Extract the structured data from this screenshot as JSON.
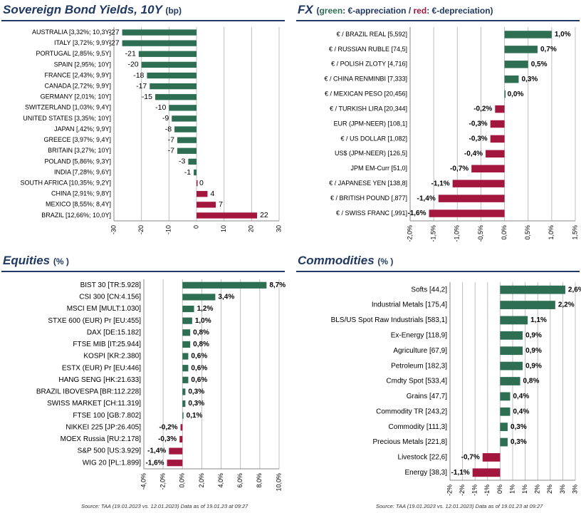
{
  "colors": {
    "green": "#2E6E53",
    "red": "#A3163D",
    "title": "#1F3864",
    "grid": "#BFBFBF"
  },
  "panels": {
    "bonds": {
      "title": "Sovereign Bond Yields, 10Y",
      "unit": "(bp)"
    },
    "fx": {
      "title": "FX",
      "sub_open": "(",
      "sub_green": "green",
      "sub_mid": ": €-appreciation / ",
      "sub_red": "red",
      "sub_close": ": €-depreciation)"
    },
    "equities": {
      "title": "Equities",
      "unit": "(% )"
    },
    "commodities": {
      "title": "Commodities",
      "unit": "(% )"
    }
  },
  "sources": {
    "equities": "Source: TAA (19.01.2023 vs. 12.01.2023) Data as of 19.01.23 at 09:27",
    "commodities": "Source: TAA (19.01.2023 vs. 12.01.2023) Data as of 19.01.23 at 09:27"
  },
  "chart_data": [
    {
      "id": "bonds",
      "type": "bar",
      "orientation": "horizontal",
      "categories": [
        "AUSTRALIA [3,32%; 10,3Y]",
        "ITALY [3,72%; 9,9Y]",
        "PORTUGAL [2,85%; 9,5Y]",
        "SPAIN [2,95%; 10Y]",
        "FRANCE [2,43%; 9,9Y]",
        "CANADA [2,72%; 9,9Y]",
        "GERMANY [2,01%; 10Y]",
        "SWITZERLAND [1,03%; 9,4Y]",
        "UNITED STATES [3,35%; 10Y]",
        "JAPAN [,42%; 9,9Y]",
        "GREECE [3,97%; 9,4Y]",
        "BRITAIN [3,27%; 10Y]",
        "POLAND [5,86%; 9,3Y]",
        "INDIA [7,28%; 9,6Y]",
        "SOUTH AFRICA [10,35%; 9,2Y]",
        "CHINA [2,91%; 9,8Y]",
        "MEXICO [8,55%; 8,4Y]",
        "BRAZIL [12,66%; 10,0Y]"
      ],
      "values": [
        -27,
        -27,
        -21,
        -20,
        -18,
        -17,
        -15,
        -10,
        -9,
        -8,
        -7,
        -7,
        -3,
        -1,
        0,
        4,
        7,
        22
      ],
      "labels": [
        "-27",
        "-27",
        "-21",
        "-20",
        "-18",
        "-17",
        "-15",
        "-10",
        "-9",
        "-8",
        "-7",
        "-7",
        "-3",
        "-1",
        "0",
        "4",
        "7",
        "22"
      ],
      "xlim": [
        -30,
        30
      ],
      "ticks": [
        -30,
        -20,
        -10,
        0,
        10,
        20,
        30
      ],
      "tick_labels": [
        "-30",
        "-20",
        "-10",
        "0",
        "10",
        "20",
        "30"
      ],
      "color_rule": "negative-green-positive-red"
    },
    {
      "id": "fx",
      "type": "bar",
      "orientation": "horizontal",
      "categories": [
        "€ / BRAZIL REAL [5,592]",
        "€ / RUSSIAN RUBLE [74,5]",
        "€ / POLISH ZLOTY [4,716]",
        "€ / CHINA RENMINBI [7,333]",
        "€ / MEXICAN  PESO [20,456]",
        "€ / TURKISH LIRA [20,344]",
        "EUR (JPM-NEER) [108,1]",
        "€ / US DOLLAR [1,082]",
        "US$ (JPM-NEER) [126,5]",
        "JPM EM-Curr [51,0]",
        "€ / JAPANESE YEN [138,8]",
        "€ / BRITISH POUND [,877]",
        "€ / SWISS FRANC [,991]"
      ],
      "values": [
        1.0,
        0.7,
        0.5,
        0.3,
        0.0,
        -0.2,
        -0.3,
        -0.3,
        -0.4,
        -0.7,
        -1.1,
        -1.4,
        -1.6
      ],
      "labels": [
        "1,0%",
        "0,7%",
        "0,5%",
        "0,3%",
        "0,0%",
        "-0,2%",
        "-0,3%",
        "-0,3%",
        "-0,4%",
        "-0,7%",
        "-1,1%",
        "-1,4%",
        "-1,6%"
      ],
      "xlim": [
        -2.0,
        1.5
      ],
      "ticks": [
        -2.0,
        -1.5,
        -1.0,
        -0.5,
        0,
        0.5,
        1.0,
        1.5
      ],
      "tick_labels": [
        "-2,0%",
        "-1,5%",
        "-1,0%",
        "-0,5%",
        "0,0%",
        "0,5%",
        "1,0%",
        "1,5%"
      ],
      "color_rule": "positive-green-negative-red"
    },
    {
      "id": "equities",
      "type": "bar",
      "orientation": "horizontal",
      "categories": [
        "BIST 30  [TR:5.928]",
        "CSI 300  [CN:4.156]",
        "MSCI EM  [MULT:1.030]",
        "STXE 600 (EUR) Pr [EU:455]",
        "DAX  [DE:15.182]",
        "FTSE MIB [IT:25.944]",
        "KOSPI  [KR:2.380]",
        "ESTX (EUR) Pr [EU:446]",
        "HANG SENG  [HK:21.633]",
        "BRAZIL IBOVESPA  [BR:112.228]",
        "SWISS MARKET  [CH:11.319]",
        "FTSE 100  [GB:7.802]",
        "NIKKEI 225  [JP:26.405]",
        "MOEX Russia  [RU:2.178]",
        "S&P 500  [US:3.929]",
        "WIG 20  [PL:1.899]"
      ],
      "values": [
        8.7,
        3.4,
        1.2,
        1.0,
        0.8,
        0.8,
        0.6,
        0.6,
        0.6,
        0.3,
        0.3,
        0.1,
        -0.2,
        -0.3,
        -1.4,
        -1.6
      ],
      "labels": [
        "8,7%",
        "3,4%",
        "1,2%",
        "1,0%",
        "0,8%",
        "0,8%",
        "0,6%",
        "0,6%",
        "0,6%",
        "0,3%",
        "0,3%",
        "0,1%",
        "-0,2%",
        "-0,3%",
        "-1,4%",
        "-1,6%"
      ],
      "xlim": [
        -4.0,
        10.0
      ],
      "ticks": [
        -4,
        -2,
        0,
        2,
        4,
        6,
        8,
        10
      ],
      "tick_labels": [
        "-4,0%",
        "-2,0%",
        "0,0%",
        "2,0%",
        "4,0%",
        "6,0%",
        "8,0%",
        "10,0%"
      ],
      "color_rule": "positive-green-negative-red"
    },
    {
      "id": "commodities",
      "type": "bar",
      "orientation": "horizontal",
      "categories": [
        "Softs [44,2]",
        "Industrial Metals [175,4]",
        "BLS/US Spot Raw Industrials [583,1]",
        "Ex-Energy [118,9]",
        "Agriculture [67,9]",
        "Petroleum [182,3]",
        "Cmdty Spot [533,4]",
        "Grains [47,7]",
        "Commodity TR [243,2]",
        "Commodity [111,3]",
        "Precious Metals [221,8]",
        "Livestock [22,6]",
        "Energy [38,3]"
      ],
      "values": [
        2.6,
        2.2,
        1.1,
        0.9,
        0.9,
        0.9,
        0.8,
        0.4,
        0.4,
        0.3,
        0.3,
        -0.7,
        -1.1
      ],
      "labels": [
        "2,6%",
        "2,2%",
        "1,1%",
        "0,9%",
        "0,9%",
        "0,9%",
        "0,8%",
        "0,4%",
        "0,4%",
        "0,3%",
        "0,3%",
        "-0,7%",
        "-1,1%"
      ],
      "xlim": [
        -2,
        3
      ],
      "ticks": [
        -2,
        -1.5,
        -1,
        -0.5,
        0,
        0.5,
        1,
        1.5,
        2,
        2.5,
        3
      ],
      "tick_labels": [
        "-2%",
        "-2%",
        "-1%",
        "-1%",
        "0%",
        "1%",
        "1%",
        "2%",
        "2%",
        "3%",
        "3%"
      ],
      "color_rule": "positive-green-negative-red"
    }
  ]
}
